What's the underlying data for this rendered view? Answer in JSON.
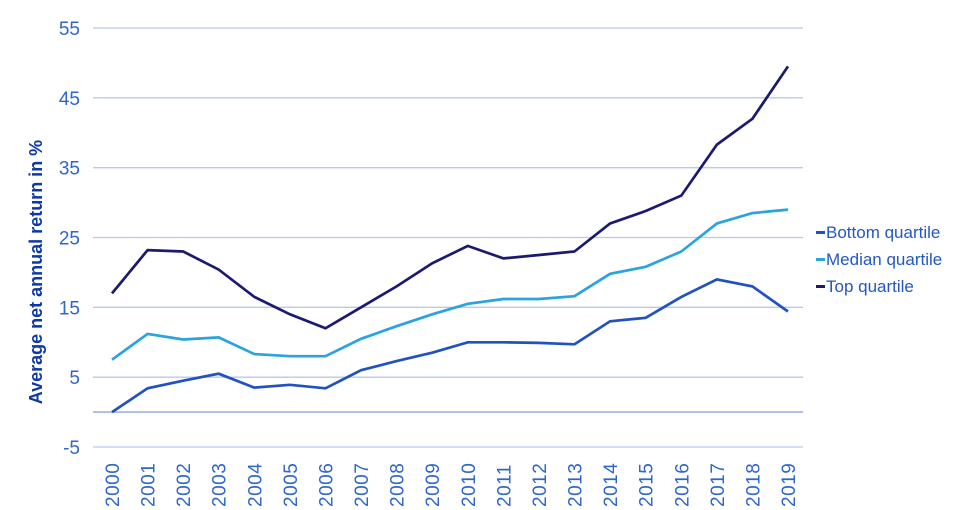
{
  "chart_data": {
    "type": "line",
    "title": "",
    "xlabel": "",
    "ylabel": "Average net annual return in %",
    "categories": [
      "2000",
      "2001",
      "2002",
      "2003",
      "2004",
      "2005",
      "2006",
      "2007",
      "2008",
      "2009",
      "2010",
      "2011",
      "2012",
      "2013",
      "2014",
      "2015",
      "2016",
      "2017",
      "2018",
      "2019"
    ],
    "series": [
      {
        "name": "Bottom quartile",
        "color": "#2152c0",
        "values": [
          0,
          3.4,
          4.5,
          5.5,
          3.5,
          3.9,
          3.4,
          6,
          7.3,
          8.5,
          10,
          10,
          9.9,
          9.7,
          13,
          13.5,
          16.5,
          19,
          18,
          14.4
        ]
      },
      {
        "name": "Median quartile",
        "color": "#2aa3df",
        "values": [
          7.5,
          11.2,
          10.4,
          10.7,
          8.3,
          8,
          8,
          10.5,
          12.3,
          14,
          15.5,
          16.2,
          16.2,
          16.6,
          19.8,
          20.8,
          23,
          27,
          28.5,
          29
        ]
      },
      {
        "name": "Top quartile",
        "color": "#1a1a70",
        "values": [
          17,
          23.2,
          23,
          20.4,
          16.5,
          14,
          12,
          15,
          18,
          21.3,
          23.8,
          22,
          22.5,
          23,
          27,
          28.8,
          31,
          38.3,
          42,
          49.5
        ]
      }
    ],
    "ylim": [
      -5,
      55
    ],
    "yticks": [
      55,
      45,
      35,
      25,
      15,
      5,
      -5
    ],
    "zero_line": true,
    "grid": true,
    "legend_position": "right"
  },
  "colors": {
    "grid": "#b9c9ec",
    "zero_line": "#9fb5e4",
    "tick_label": "#2f66cc",
    "axis_title": "#0c38a8",
    "legend_text": "#2257c4",
    "background": "#ffffff"
  }
}
